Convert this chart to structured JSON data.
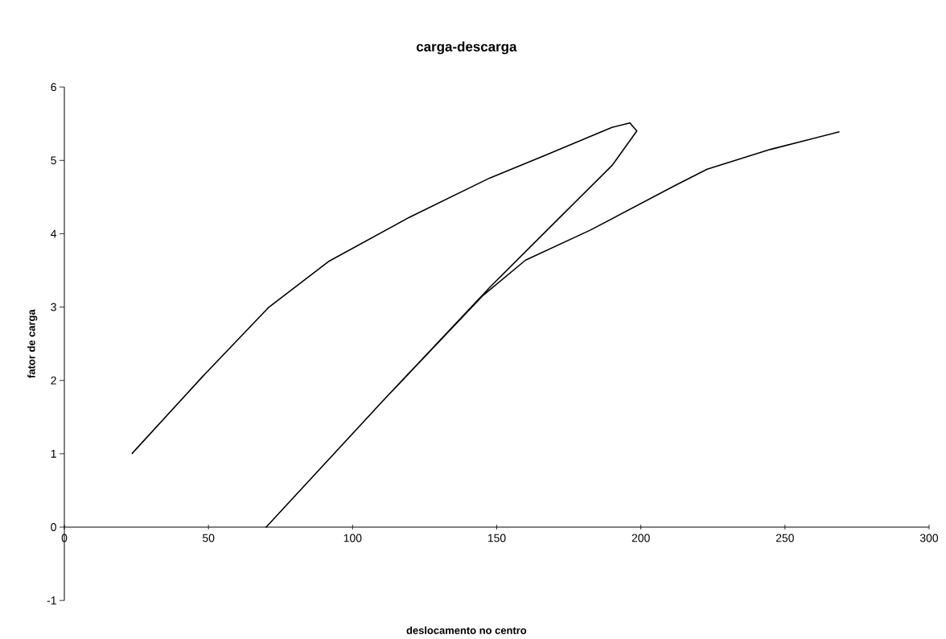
{
  "chart_data": {
    "type": "line",
    "title": "carga-descarga",
    "xlabel": "deslocamento no centro",
    "ylabel": "fator de carga",
    "x": [
      23.4,
      47.9,
      71,
      91.6,
      120,
      147.6,
      166.3,
      190,
      196.2,
      198.6,
      190,
      172.6,
      147.6,
      110,
      70,
      110,
      145,
      160,
      182.5,
      212,
      223,
      245,
      268.9
    ],
    "values": [
      1.0,
      2.05,
      3.0,
      3.62,
      4.23,
      4.76,
      5.06,
      5.45,
      5.51,
      5.4,
      4.93,
      4.25,
      3.27,
      1.7,
      0,
      1.7,
      3.15,
      3.64,
      4.05,
      4.66,
      4.88,
      5.15,
      5.39
    ],
    "color": "#000000",
    "xlim": [
      0,
      300
    ],
    "ylim": [
      -1,
      6
    ],
    "xticks": [
      0,
      50,
      100,
      150,
      200,
      250,
      300
    ],
    "yticks": [
      -1,
      0,
      1,
      2,
      3,
      4,
      5,
      6
    ]
  }
}
